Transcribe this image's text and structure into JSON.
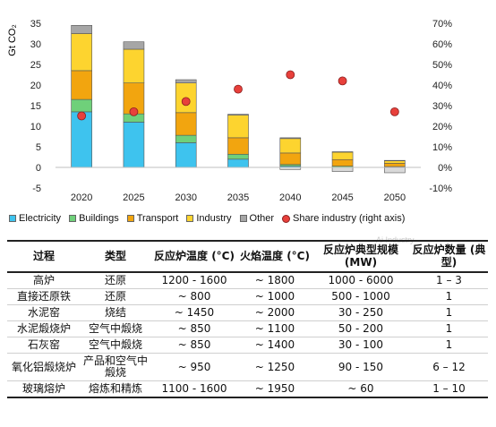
{
  "chart_data": {
    "type": "bar",
    "stacked": true,
    "categories": [
      "2020",
      "2025",
      "2030",
      "2035",
      "2040",
      "2045",
      "2050"
    ],
    "ylabel": "Gt CO₂",
    "ylim": [
      -5,
      35
    ],
    "yticks": [
      -5,
      0,
      5,
      10,
      15,
      20,
      25,
      30,
      35
    ],
    "y2lim": [
      -10,
      70
    ],
    "y2ticks": [
      "-10%",
      "0%",
      "10%",
      "20%",
      "30%",
      "40%",
      "50%",
      "60%",
      "70%"
    ],
    "grid": false,
    "legend_position": "bottom",
    "series": [
      {
        "name": "Electricity",
        "color": "#3ec3ee",
        "values": [
          13.5,
          11,
          6,
          2,
          0.3,
          -0.3,
          -0.5
        ]
      },
      {
        "name": "Buildings",
        "color": "#6fd07a",
        "values": [
          3,
          2,
          1.8,
          1.2,
          0.4,
          0.3,
          0.2
        ]
      },
      {
        "name": "Transport",
        "color": "#f2a50f",
        "values": [
          7,
          7.5,
          5.5,
          4,
          2.8,
          1.6,
          0.8
        ]
      },
      {
        "name": "Industry",
        "color": "#fdd42f",
        "values": [
          9,
          8.2,
          7.2,
          5.5,
          3.5,
          1.8,
          0.6
        ]
      },
      {
        "name": "Other",
        "color": "#a6a6a6",
        "values": [
          2,
          1.8,
          0.8,
          0.2,
          0.2,
          0.1,
          0.1
        ]
      }
    ],
    "negative_values": [
      0,
      0,
      0,
      0,
      -0.5,
      -1,
      -1.3
    ],
    "line_series": {
      "name": "Share industry (right axis)",
      "color": "#e8403b",
      "axis": "right",
      "values": [
        25,
        27,
        32,
        38,
        45,
        42,
        27
      ]
    }
  },
  "table": {
    "headers": [
      "过程",
      "类型",
      "反应炉温度 (°C)",
      "火焰温度 (°C)",
      "反应炉典型规模 (MW)",
      "反应炉数量 (典型)"
    ],
    "rows": [
      [
        "高炉",
        "还原",
        "1200 - 1600",
        "~ 1800",
        "1000 - 6000",
        "1 – 3"
      ],
      [
        "直接还原铁",
        "还原",
        "~ 800",
        "~ 1000",
        "500 - 1000",
        "1"
      ],
      [
        "水泥窑",
        "烧结",
        "~ 1450",
        "~ 2000",
        "30 - 250",
        "1"
      ],
      [
        "水泥煅烧炉",
        "空气中煅烧",
        "~ 850",
        "~ 1100",
        "50 - 200",
        "1"
      ],
      [
        "石灰窑",
        "空气中煅烧",
        "~ 850",
        "~ 1400",
        "30 - 100",
        "1"
      ],
      [
        "氧化铝煅烧炉",
        "产品和空气中煅烧",
        "~ 950",
        "~ 1250",
        "90 - 150",
        "6 – 12"
      ],
      [
        "玻璃熔炉",
        "熔炼和精炼",
        "1100 - 1600",
        "~ 1950",
        "~ 60",
        "1 – 10"
      ]
    ]
  },
  "watermark": "Ai Industry"
}
